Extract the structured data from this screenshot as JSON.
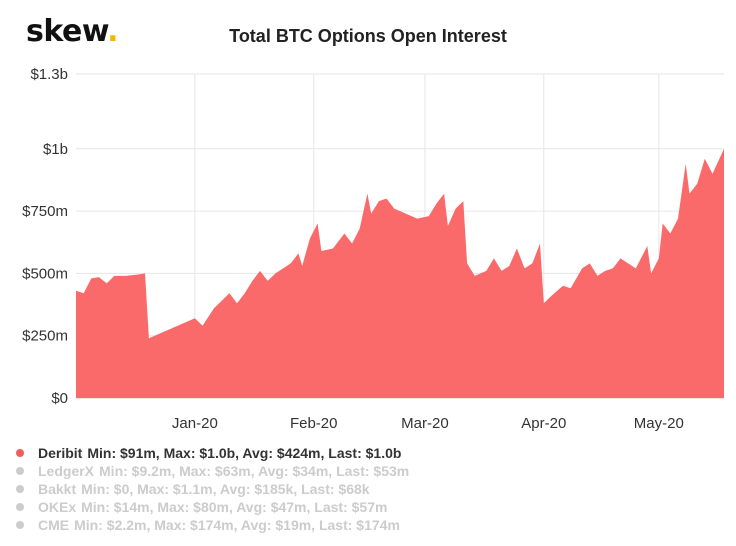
{
  "header": {
    "logo_text": "skew",
    "logo_dot": "."
  },
  "chart_data": {
    "type": "area",
    "title": "Total BTC Options Open Interest",
    "xlabel": "",
    "ylabel": "",
    "ylim": [
      0,
      1300
    ],
    "y_unit": "millions USD",
    "y_ticks": [
      {
        "value": 0,
        "label": "$0"
      },
      {
        "value": 250,
        "label": "$250m"
      },
      {
        "value": 500,
        "label": "$500m"
      },
      {
        "value": 750,
        "label": "$750m"
      },
      {
        "value": 1000,
        "label": "$1b"
      },
      {
        "value": 1300,
        "label": "$1.3b"
      }
    ],
    "x_ticks": [
      {
        "date": "2020-01-01",
        "label": "Jan-20"
      },
      {
        "date": "2020-02-01",
        "label": "Feb-20"
      },
      {
        "date": "2020-03-01",
        "label": "Mar-20"
      },
      {
        "date": "2020-04-01",
        "label": "Apr-20"
      },
      {
        "date": "2020-05-01",
        "label": "May-20"
      }
    ],
    "xlim": [
      "2019-12-01",
      "2020-05-18"
    ],
    "grid": true,
    "legend_placement": "bottom-left",
    "series": [
      {
        "name": "Deribit",
        "color": "#fa6a6a",
        "points": [
          [
            "2019-12-01",
            430
          ],
          [
            "2019-12-03",
            420
          ],
          [
            "2019-12-05",
            480
          ],
          [
            "2019-12-07",
            485
          ],
          [
            "2019-12-09",
            460
          ],
          [
            "2019-12-11",
            490
          ],
          [
            "2019-12-14",
            490
          ],
          [
            "2019-12-17",
            495
          ],
          [
            "2019-12-19",
            500
          ],
          [
            "2019-12-20",
            240
          ],
          [
            "2019-12-23",
            260
          ],
          [
            "2019-12-26",
            280
          ],
          [
            "2019-12-29",
            300
          ],
          [
            "2020-01-01",
            320
          ],
          [
            "2020-01-03",
            290
          ],
          [
            "2020-01-06",
            360
          ],
          [
            "2020-01-08",
            390
          ],
          [
            "2020-01-10",
            420
          ],
          [
            "2020-01-12",
            380
          ],
          [
            "2020-01-14",
            420
          ],
          [
            "2020-01-16",
            470
          ],
          [
            "2020-01-18",
            510
          ],
          [
            "2020-01-20",
            470
          ],
          [
            "2020-01-22",
            500
          ],
          [
            "2020-01-24",
            520
          ],
          [
            "2020-01-26",
            540
          ],
          [
            "2020-01-28",
            580
          ],
          [
            "2020-01-29",
            530
          ],
          [
            "2020-01-31",
            640
          ],
          [
            "2020-02-02",
            700
          ],
          [
            "2020-02-03",
            590
          ],
          [
            "2020-02-06",
            600
          ],
          [
            "2020-02-09",
            660
          ],
          [
            "2020-02-11",
            620
          ],
          [
            "2020-02-13",
            680
          ],
          [
            "2020-02-15",
            820
          ],
          [
            "2020-02-16",
            740
          ],
          [
            "2020-02-18",
            790
          ],
          [
            "2020-02-20",
            800
          ],
          [
            "2020-02-22",
            760
          ],
          [
            "2020-02-25",
            740
          ],
          [
            "2020-02-28",
            720
          ],
          [
            "2020-03-02",
            730
          ],
          [
            "2020-03-04",
            780
          ],
          [
            "2020-03-06",
            820
          ],
          [
            "2020-03-07",
            690
          ],
          [
            "2020-03-09",
            760
          ],
          [
            "2020-03-11",
            790
          ],
          [
            "2020-03-12",
            540
          ],
          [
            "2020-03-14",
            490
          ],
          [
            "2020-03-17",
            510
          ],
          [
            "2020-03-19",
            560
          ],
          [
            "2020-03-21",
            510
          ],
          [
            "2020-03-23",
            530
          ],
          [
            "2020-03-25",
            600
          ],
          [
            "2020-03-27",
            520
          ],
          [
            "2020-03-29",
            540
          ],
          [
            "2020-03-31",
            620
          ],
          [
            "2020-04-01",
            380
          ],
          [
            "2020-04-03",
            410
          ],
          [
            "2020-04-06",
            450
          ],
          [
            "2020-04-08",
            440
          ],
          [
            "2020-04-11",
            520
          ],
          [
            "2020-04-13",
            540
          ],
          [
            "2020-04-15",
            490
          ],
          [
            "2020-04-17",
            510
          ],
          [
            "2020-04-19",
            520
          ],
          [
            "2020-04-21",
            560
          ],
          [
            "2020-04-23",
            540
          ],
          [
            "2020-04-25",
            520
          ],
          [
            "2020-04-28",
            610
          ],
          [
            "2020-04-29",
            500
          ],
          [
            "2020-05-01",
            560
          ],
          [
            "2020-05-02",
            700
          ],
          [
            "2020-05-04",
            660
          ],
          [
            "2020-05-06",
            720
          ],
          [
            "2020-05-08",
            940
          ],
          [
            "2020-05-09",
            820
          ],
          [
            "2020-05-11",
            860
          ],
          [
            "2020-05-13",
            960
          ],
          [
            "2020-05-15",
            900
          ],
          [
            "2020-05-18",
            1000
          ]
        ]
      }
    ]
  },
  "legend": [
    {
      "name": "Deribit",
      "stats": "Min: $91m, Max: $1.0b, Avg: $424m, Last: $1.0b",
      "active": true,
      "color": "#f25c5c"
    },
    {
      "name": "LedgerX",
      "stats": "Min: $9.2m, Max: $63m, Avg: $34m, Last: $53m",
      "active": false,
      "color": "#cccccc"
    },
    {
      "name": "Bakkt",
      "stats": "Min: $0, Max: $1.1m, Avg: $185k, Last: $68k",
      "active": false,
      "color": "#cccccc"
    },
    {
      "name": "OKEx",
      "stats": "Min: $14m, Max: $80m, Avg: $47m, Last: $57m",
      "active": false,
      "color": "#cccccc"
    },
    {
      "name": "CME",
      "stats": "Min: $2.2m, Max: $174m, Avg: $19m, Last: $174m",
      "active": false,
      "color": "#cccccc"
    }
  ]
}
